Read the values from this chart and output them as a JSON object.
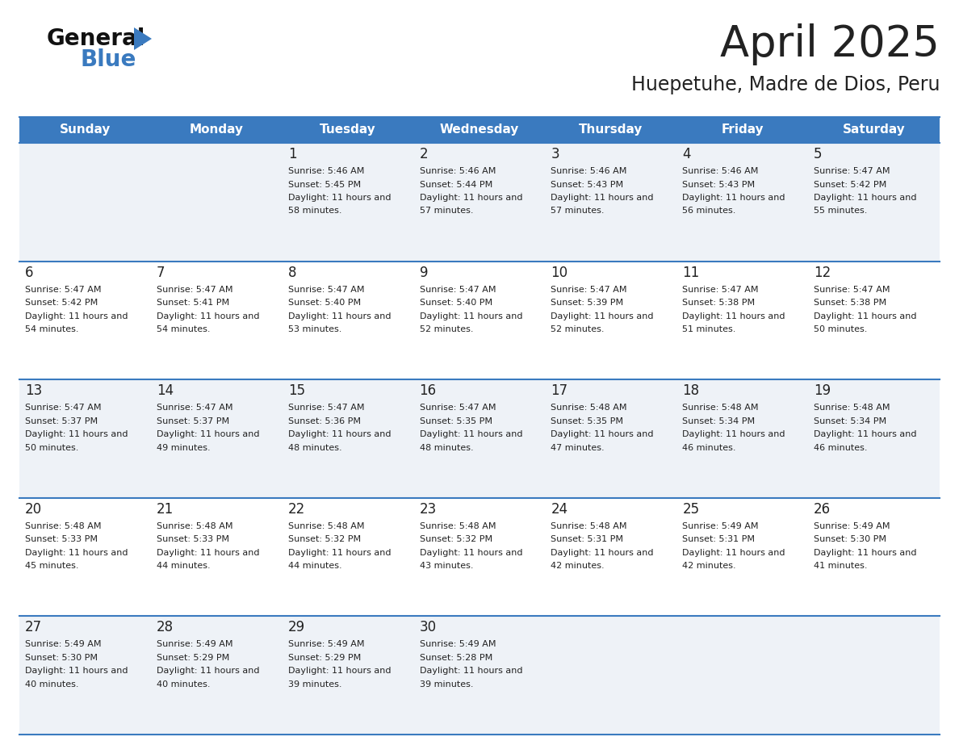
{
  "title": "April 2025",
  "subtitle": "Huepetuhe, Madre de Dios, Peru",
  "days_of_week": [
    "Sunday",
    "Monday",
    "Tuesday",
    "Wednesday",
    "Thursday",
    "Friday",
    "Saturday"
  ],
  "header_bg": "#3a7abf",
  "header_text": "#ffffff",
  "row_bg_odd": "#eef2f7",
  "row_bg_even": "#ffffff",
  "border_color": "#3a7abf",
  "text_color": "#222222",
  "calendar_data": [
    [
      {
        "day": "",
        "sunrise": "",
        "sunset": "",
        "daylight": ""
      },
      {
        "day": "",
        "sunrise": "",
        "sunset": "",
        "daylight": ""
      },
      {
        "day": "1",
        "sunrise": "5:46 AM",
        "sunset": "5:45 PM",
        "daylight": "11 hours and 58 minutes."
      },
      {
        "day": "2",
        "sunrise": "5:46 AM",
        "sunset": "5:44 PM",
        "daylight": "11 hours and 57 minutes."
      },
      {
        "day": "3",
        "sunrise": "5:46 AM",
        "sunset": "5:43 PM",
        "daylight": "11 hours and 57 minutes."
      },
      {
        "day": "4",
        "sunrise": "5:46 AM",
        "sunset": "5:43 PM",
        "daylight": "11 hours and 56 minutes."
      },
      {
        "day": "5",
        "sunrise": "5:47 AM",
        "sunset": "5:42 PM",
        "daylight": "11 hours and 55 minutes."
      }
    ],
    [
      {
        "day": "6",
        "sunrise": "5:47 AM",
        "sunset": "5:42 PM",
        "daylight": "11 hours and 54 minutes."
      },
      {
        "day": "7",
        "sunrise": "5:47 AM",
        "sunset": "5:41 PM",
        "daylight": "11 hours and 54 minutes."
      },
      {
        "day": "8",
        "sunrise": "5:47 AM",
        "sunset": "5:40 PM",
        "daylight": "11 hours and 53 minutes."
      },
      {
        "day": "9",
        "sunrise": "5:47 AM",
        "sunset": "5:40 PM",
        "daylight": "11 hours and 52 minutes."
      },
      {
        "day": "10",
        "sunrise": "5:47 AM",
        "sunset": "5:39 PM",
        "daylight": "11 hours and 52 minutes."
      },
      {
        "day": "11",
        "sunrise": "5:47 AM",
        "sunset": "5:38 PM",
        "daylight": "11 hours and 51 minutes."
      },
      {
        "day": "12",
        "sunrise": "5:47 AM",
        "sunset": "5:38 PM",
        "daylight": "11 hours and 50 minutes."
      }
    ],
    [
      {
        "day": "13",
        "sunrise": "5:47 AM",
        "sunset": "5:37 PM",
        "daylight": "11 hours and 50 minutes."
      },
      {
        "day": "14",
        "sunrise": "5:47 AM",
        "sunset": "5:37 PM",
        "daylight": "11 hours and 49 minutes."
      },
      {
        "day": "15",
        "sunrise": "5:47 AM",
        "sunset": "5:36 PM",
        "daylight": "11 hours and 48 minutes."
      },
      {
        "day": "16",
        "sunrise": "5:47 AM",
        "sunset": "5:35 PM",
        "daylight": "11 hours and 48 minutes."
      },
      {
        "day": "17",
        "sunrise": "5:48 AM",
        "sunset": "5:35 PM",
        "daylight": "11 hours and 47 minutes."
      },
      {
        "day": "18",
        "sunrise": "5:48 AM",
        "sunset": "5:34 PM",
        "daylight": "11 hours and 46 minutes."
      },
      {
        "day": "19",
        "sunrise": "5:48 AM",
        "sunset": "5:34 PM",
        "daylight": "11 hours and 46 minutes."
      }
    ],
    [
      {
        "day": "20",
        "sunrise": "5:48 AM",
        "sunset": "5:33 PM",
        "daylight": "11 hours and 45 minutes."
      },
      {
        "day": "21",
        "sunrise": "5:48 AM",
        "sunset": "5:33 PM",
        "daylight": "11 hours and 44 minutes."
      },
      {
        "day": "22",
        "sunrise": "5:48 AM",
        "sunset": "5:32 PM",
        "daylight": "11 hours and 44 minutes."
      },
      {
        "day": "23",
        "sunrise": "5:48 AM",
        "sunset": "5:32 PM",
        "daylight": "11 hours and 43 minutes."
      },
      {
        "day": "24",
        "sunrise": "5:48 AM",
        "sunset": "5:31 PM",
        "daylight": "11 hours and 42 minutes."
      },
      {
        "day": "25",
        "sunrise": "5:49 AM",
        "sunset": "5:31 PM",
        "daylight": "11 hours and 42 minutes."
      },
      {
        "day": "26",
        "sunrise": "5:49 AM",
        "sunset": "5:30 PM",
        "daylight": "11 hours and 41 minutes."
      }
    ],
    [
      {
        "day": "27",
        "sunrise": "5:49 AM",
        "sunset": "5:30 PM",
        "daylight": "11 hours and 40 minutes."
      },
      {
        "day": "28",
        "sunrise": "5:49 AM",
        "sunset": "5:29 PM",
        "daylight": "11 hours and 40 minutes."
      },
      {
        "day": "29",
        "sunrise": "5:49 AM",
        "sunset": "5:29 PM",
        "daylight": "11 hours and 39 minutes."
      },
      {
        "day": "30",
        "sunrise": "5:49 AM",
        "sunset": "5:28 PM",
        "daylight": "11 hours and 39 minutes."
      },
      {
        "day": "",
        "sunrise": "",
        "sunset": "",
        "daylight": ""
      },
      {
        "day": "",
        "sunrise": "",
        "sunset": "",
        "daylight": ""
      },
      {
        "day": "",
        "sunrise": "",
        "sunset": "",
        "daylight": ""
      }
    ]
  ],
  "logo_text_general": "General",
  "logo_text_blue": "Blue",
  "logo_color_general": "#111111",
  "logo_color_blue": "#3a7abf",
  "logo_triangle_color": "#3a7abf",
  "title_fontsize": 38,
  "subtitle_fontsize": 17,
  "header_fontsize": 11,
  "day_num_fontsize": 12,
  "cell_text_fontsize": 8
}
